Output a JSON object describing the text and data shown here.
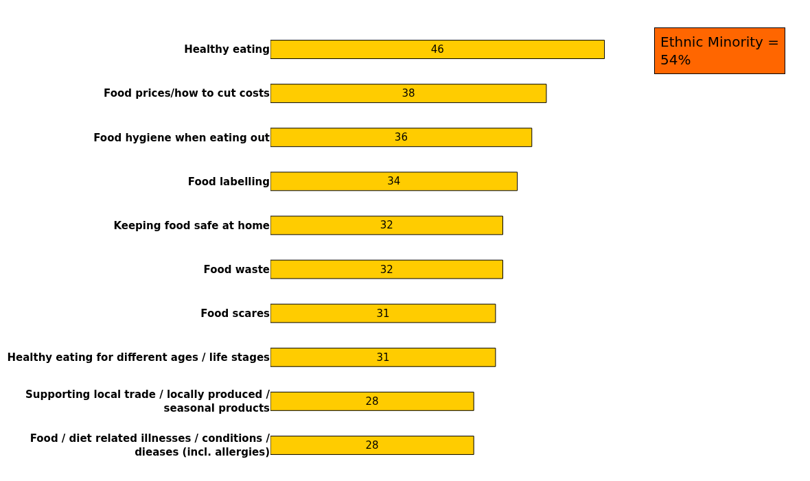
{
  "chart_data": {
    "type": "bar",
    "orientation": "horizontal",
    "categories": [
      "Healthy eating",
      "Food prices/how to cut costs",
      "Food hygiene when eating out",
      "Food labelling",
      "Keeping food safe at home",
      "Food waste",
      "Food scares",
      "Healthy eating for different ages / life stages",
      "Supporting local trade / locally produced /\nseasonal products",
      "Food / diet related illnesses / conditions /\ndieases (incl. allergies)"
    ],
    "values": [
      46,
      38,
      36,
      34,
      32,
      32,
      31,
      31,
      28,
      28
    ],
    "color": "#ffcc00",
    "data_labels": true,
    "tick_labels": "y",
    "legend": false,
    "annotations": [
      "Ethnic Minority =\n54%"
    ]
  }
}
